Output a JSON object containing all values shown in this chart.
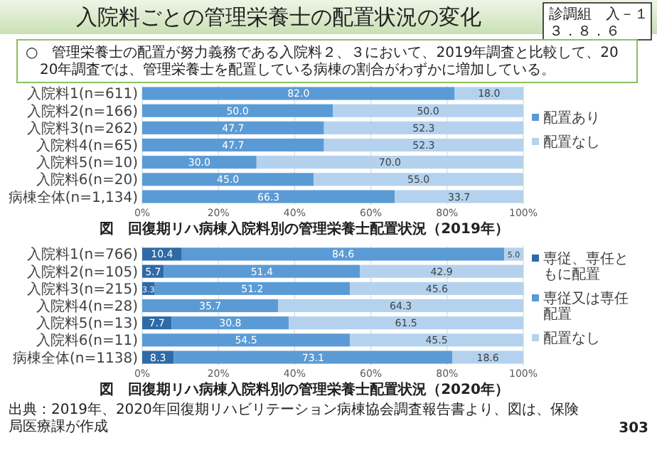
{
  "chart_data": [
    {
      "type": "bar",
      "orientation": "horizontal",
      "stacked": true,
      "title": "入院料ごとの管理栄養士の配置状況の変化",
      "categories": [
        "入院料1(n=611)",
        "入院料2(n=166)",
        "入院料3(n=262)",
        "入院料4(n=65)",
        "入院料5(n=10)",
        "入院料6(n=20)",
        "病棟全体(n=1,134)"
      ],
      "series": [
        {
          "name": "配置あり",
          "color": "#5b9bd5",
          "values": [
            82.0,
            50.0,
            47.7,
            47.7,
            30.0,
            45.0,
            66.3
          ],
          "value_labels": [
            "82.0",
            "50.0",
            "47.7",
            "47.7",
            "30.0",
            "45.0",
            "66.3"
          ]
        },
        {
          "name": "配置なし",
          "color": "#b4d2ee",
          "values": [
            18.0,
            50.0,
            52.3,
            52.3,
            70.0,
            55.0,
            33.7
          ],
          "value_labels": [
            "18.0",
            "50.0",
            "52.3",
            "52.3",
            "70.0",
            "55.0",
            "33.7"
          ]
        }
      ],
      "xlim": [
        0,
        100
      ],
      "xticks": [
        {
          "value": 0,
          "label": "0%"
        },
        {
          "value": 20,
          "label": "20%"
        },
        {
          "value": 40,
          "label": "40%"
        },
        {
          "value": 60,
          "label": "60%"
        },
        {
          "value": 80,
          "label": "80%"
        },
        {
          "value": 100,
          "label": "100%"
        }
      ],
      "grid": "x",
      "legend": "right",
      "annotations": [
        "診調組　入－１",
        "３．８．６",
        "○　管理栄養士の配置が努力義務である入院料２、３において、2019年調査と比較して、2020年調査では、管理栄養士を配置している病棟の割合がわずかに増加している。",
        "図　回復期リハ病棟入院料別の管理栄養士配置状況（2019年）"
      ]
    },
    {
      "type": "bar",
      "orientation": "horizontal",
      "stacked": true,
      "categories": [
        "入院料1(n=766)",
        "入院料2(n=105)",
        "入院料3(n=215)",
        "入院料4(n=28)",
        "入院料5(n=13)",
        "入院料6(n=11)",
        "病棟全体(n=1138)"
      ],
      "series": [
        {
          "name": "専従、専任ともに配置",
          "color": "#2e6aa8",
          "values": [
            10.4,
            5.7,
            3.3,
            null,
            7.7,
            null,
            8.3
          ],
          "value_labels": [
            "10.4",
            "5.7",
            "3.3",
            null,
            "7.7",
            null,
            "8.3"
          ]
        },
        {
          "name": "専従又は専任配置",
          "color": "#5b9bd5",
          "values": [
            84.6,
            51.4,
            51.2,
            35.7,
            30.8,
            54.5,
            73.1
          ],
          "value_labels": [
            "84.6",
            "51.4",
            "51.2",
            "35.7",
            "30.8",
            "54.5",
            "73.1"
          ]
        },
        {
          "name": "配置なし",
          "color": "#b4d2ee",
          "values": [
            5.0,
            42.9,
            45.6,
            64.3,
            61.5,
            45.5,
            18.6
          ],
          "value_labels": [
            "5.0",
            "42.9",
            "45.6",
            "64.3",
            "61.5",
            "45.5",
            "18.6"
          ]
        }
      ],
      "xlim": [
        0,
        100
      ],
      "xticks": [
        {
          "value": 0,
          "label": "0%"
        },
        {
          "value": 20,
          "label": "20%"
        },
        {
          "value": 40,
          "label": "40%"
        },
        {
          "value": 60,
          "label": "60%"
        },
        {
          "value": 80,
          "label": "80%"
        },
        {
          "value": 100,
          "label": "100%"
        }
      ],
      "grid": "x",
      "legend": "right",
      "annotations": [
        "図　回復期リハ病棟入院料別の管理栄養士配置状況（2020年）",
        "出典：2019年、2020年回復期リハビリテーション病棟協会調査報告書より、図は、保険局医療課が作成",
        "303"
      ]
    }
  ]
}
